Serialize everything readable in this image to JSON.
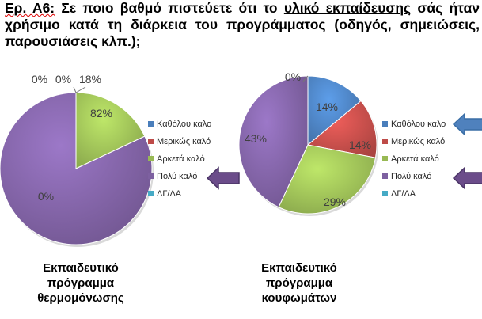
{
  "question": {
    "id": "Ερ. Α6:",
    "text_before": "Σε ποιο βαθμό πιστεύετε ότι το",
    "underlined": "υλικό εκπαίδευσης",
    "text_after": "σάς ήταν χρήσιμο κατά τη διάρκεια του προγράμματος (οδηγός, σημειώσεις, παρουσιάσεις κλπ.);"
  },
  "colors": {
    "Καθόλου καλο": "#4a7ebb",
    "Μερικώς καλό": "#be4b48",
    "Αρκετά καλό": "#98b954",
    "Πολύ καλό": "#7d60a0",
    "ΔΓ/ΔΑ": "#46aac5",
    "arrow_blue": "#4f81bd",
    "arrow_purple": "#6b4c8a"
  },
  "chart_data": [
    {
      "type": "pie",
      "title": "Εκπαιδευτικό πρόγραμμα θερμομόνωσης",
      "categories": [
        "Καθόλου καλο",
        "Μερικώς καλό",
        "Αρκετά καλό",
        "Πολύ καλό",
        "ΔΓ/ΔΑ"
      ],
      "values": [
        0,
        0,
        18,
        82,
        0
      ],
      "data_labels": [
        "0%",
        "0%",
        "18%",
        "82%",
        "0%"
      ],
      "legend_position": "right",
      "arrows": [
        {
          "target": "Πολύ καλό",
          "color": "purple"
        }
      ]
    },
    {
      "type": "pie",
      "title": "Εκπαιδευτικό πρόγραμμα κουφωμάτων",
      "categories": [
        "Καθόλου καλο",
        "Μερικώς καλό",
        "Αρκετά καλό",
        "Πολύ καλό",
        "ΔΓ/ΔΑ"
      ],
      "values": [
        14,
        14,
        29,
        43,
        0
      ],
      "data_labels": [
        "14%",
        "14%",
        "29%",
        "43%",
        "0%"
      ],
      "legend_position": "right",
      "arrows": [
        {
          "target": "Καθόλου καλο",
          "color": "blue"
        },
        {
          "target": "Πολύ καλό",
          "color": "purple"
        }
      ]
    }
  ]
}
